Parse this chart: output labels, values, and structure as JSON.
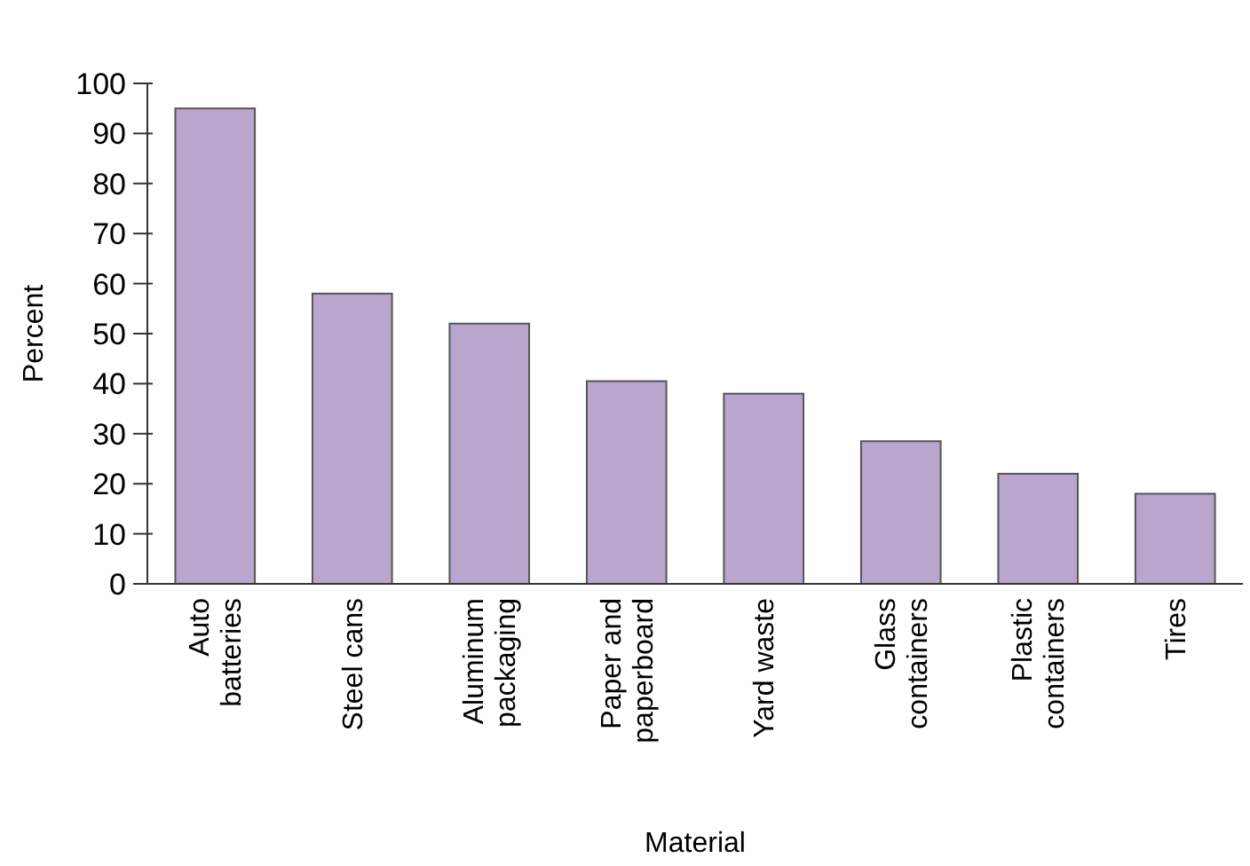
{
  "chart_data": {
    "type": "bar",
    "xlabel": "Material",
    "ylabel": "Percent",
    "categories": [
      "Auto\nbatteries",
      "Steel cans",
      "Aluminum\npackaging",
      "Paper and\npaperboard",
      "Yard waste",
      "Glass\ncontainers",
      "Plastic\ncontainers",
      "Tires"
    ],
    "values": [
      95,
      58,
      52,
      40.5,
      38,
      28.5,
      22,
      18
    ],
    "color": "#b9a6cc",
    "ylim": [
      0,
      100
    ],
    "yticks": [
      0,
      10,
      20,
      30,
      40,
      50,
      60,
      70,
      80,
      90,
      100
    ],
    "grid": false
  }
}
